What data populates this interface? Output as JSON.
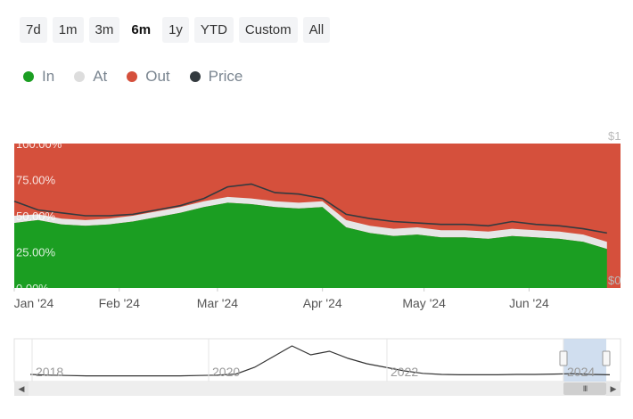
{
  "range_buttons": [
    "7d",
    "1m",
    "3m",
    "6m",
    "1y",
    "YTD",
    "Custom",
    "All"
  ],
  "active_range": "6m",
  "legend": [
    {
      "label": "In",
      "color": "#1b9e22"
    },
    {
      "label": "At",
      "color": "#dddddd"
    },
    {
      "label": "Out",
      "color": "#d5503c"
    },
    {
      "label": "Price",
      "color": "#333a3f"
    }
  ],
  "chart_data": {
    "type": "area",
    "x": [
      "2024-01-01",
      "2024-01-08",
      "2024-01-15",
      "2024-01-22",
      "2024-01-29",
      "2024-02-05",
      "2024-02-12",
      "2024-02-19",
      "2024-02-26",
      "2024-03-04",
      "2024-03-11",
      "2024-03-18",
      "2024-03-25",
      "2024-04-01",
      "2024-04-08",
      "2024-04-15",
      "2024-04-22",
      "2024-04-29",
      "2024-05-06",
      "2024-05-13",
      "2024-05-20",
      "2024-05-27",
      "2024-06-03",
      "2024-06-10",
      "2024-06-17",
      "2024-06-24"
    ],
    "x_tick_labels": [
      "Jan '24",
      "Feb '24",
      "Mar '24",
      "Apr '24",
      "May '24",
      "Jun '24"
    ],
    "y_tick_labels": [
      "0.00%",
      "25.00%",
      "50.00%",
      "75.00%",
      "100.00%"
    ],
    "ylim": [
      0,
      100
    ],
    "right_axis_labels": [
      "$0",
      "$1"
    ],
    "series": [
      {
        "name": "In",
        "values": [
          45,
          47,
          44,
          43,
          44,
          46,
          49,
          52,
          56,
          59,
          58,
          56,
          55,
          56,
          42,
          38,
          36,
          37,
          35,
          35,
          34,
          36,
          35,
          34,
          32,
          27
        ]
      },
      {
        "name": "At",
        "values": [
          5,
          4,
          4,
          4,
          4,
          4,
          4,
          4,
          4,
          4,
          4,
          4,
          4,
          4,
          5,
          5,
          5,
          5,
          5,
          5,
          5,
          5,
          5,
          5,
          5,
          5
        ]
      },
      {
        "name": "Out",
        "values": [
          50,
          49,
          52,
          53,
          52,
          50,
          47,
          44,
          40,
          37,
          38,
          40,
          41,
          40,
          53,
          57,
          59,
          58,
          60,
          60,
          61,
          59,
          60,
          61,
          63,
          68
        ]
      }
    ],
    "price_line": {
      "name": "Price",
      "values": [
        60,
        54,
        52,
        50,
        50,
        51,
        54,
        57,
        62,
        70,
        72,
        66,
        65,
        62,
        51,
        48,
        46,
        45,
        44,
        44,
        43,
        46,
        44,
        43,
        41,
        38
      ]
    },
    "navigator": {
      "x_tick_labels": [
        "2018",
        "2020",
        "2022",
        "2024"
      ],
      "values": [
        0.05,
        0.03,
        0.02,
        0.01,
        0.01,
        0.01,
        0.01,
        0.01,
        0.01,
        0.02,
        0.03,
        0.06,
        0.25,
        0.55,
        0.85,
        0.6,
        0.7,
        0.5,
        0.35,
        0.25,
        0.15,
        0.08,
        0.05,
        0.04,
        0.04,
        0.04,
        0.05,
        0.05,
        0.06,
        0.07,
        0.05,
        0.04
      ]
    }
  }
}
